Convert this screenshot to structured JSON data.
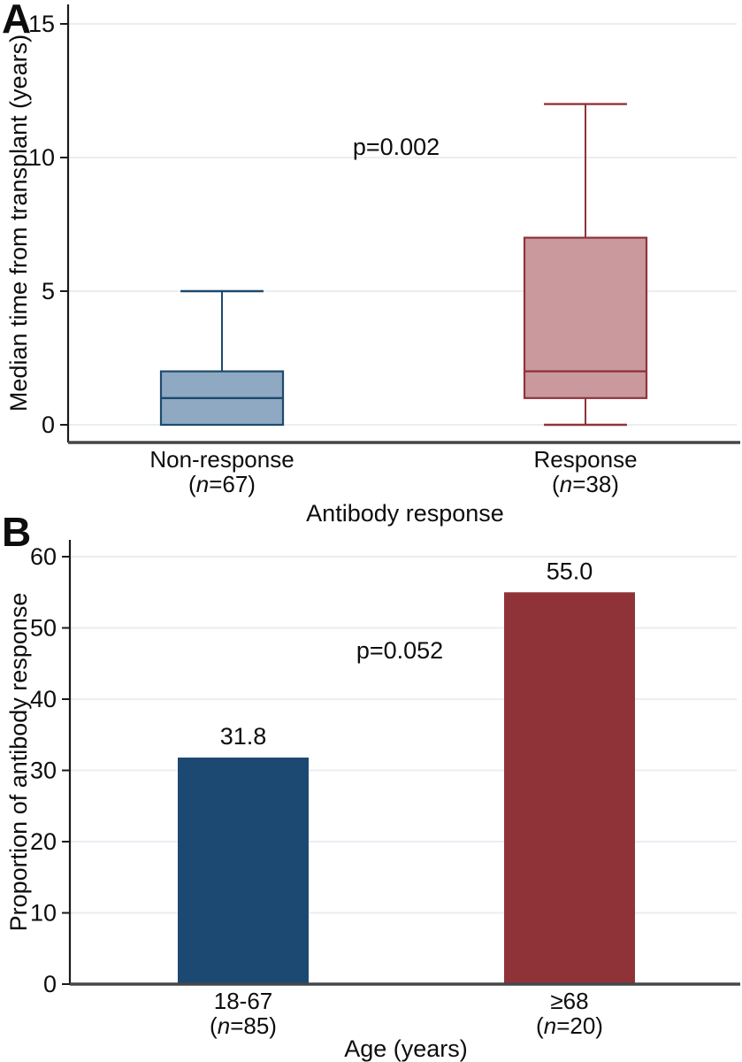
{
  "figure": {
    "panels": [
      {
        "panel_label": "A"
      },
      {
        "panel_label": "B"
      }
    ]
  },
  "colors": {
    "box_blue_fill": "#8fa9c2",
    "box_blue_stroke": "#1d4a6e",
    "box_rose_fill": "#ca999e",
    "box_rose_stroke": "#8f343a",
    "bar_navy": "#1c4972",
    "bar_red": "#903338",
    "gridline": "#e9eef2",
    "x_axis_line": "#43474a",
    "y_axis_line": "#1a1a1a",
    "text": "#0d0d0d"
  },
  "chart_data": [
    {
      "panel_label": "A",
      "type": "box",
      "title": "",
      "xlabel": "Antibody response",
      "ylabel": "Median time from transplant (years)",
      "ylim": [
        0,
        15.5
      ],
      "yticks": [
        0,
        5,
        10,
        15
      ],
      "grid": true,
      "legend": "none",
      "annotation": "p=0.002",
      "categories": [
        "Non-response",
        "Response"
      ],
      "sublabels": [
        "(n=67)",
        "(n=38)"
      ],
      "series": [
        {
          "name": "Non-response",
          "n": 67,
          "whisker_low": 0,
          "q1": 0,
          "median": 1,
          "q3": 2,
          "whisker_high": 5,
          "fill": "#8fa9c2",
          "stroke": "#1d4a6e"
        },
        {
          "name": "Response",
          "n": 38,
          "whisker_low": 0,
          "q1": 1,
          "median": 2,
          "q3": 7,
          "whisker_high": 12,
          "fill": "#ca999e",
          "stroke": "#8f343a"
        }
      ]
    },
    {
      "panel_label": "B",
      "type": "bar",
      "title": "",
      "xlabel": "Age (years)",
      "ylabel": "Proportion of antibody response",
      "ylim": [
        0,
        63
      ],
      "yticks": [
        0,
        10,
        20,
        30,
        40,
        50,
        60
      ],
      "grid": true,
      "legend": "none",
      "annotation": "p=0.052",
      "categories": [
        "18-67",
        "≥68"
      ],
      "sublabels": [
        "(n=85)",
        "(n=20)"
      ],
      "values": [
        31.8,
        55.0
      ],
      "value_labels": [
        "31.8",
        "55.0"
      ],
      "bar_fills": [
        "#1c4972",
        "#903338"
      ]
    }
  ]
}
